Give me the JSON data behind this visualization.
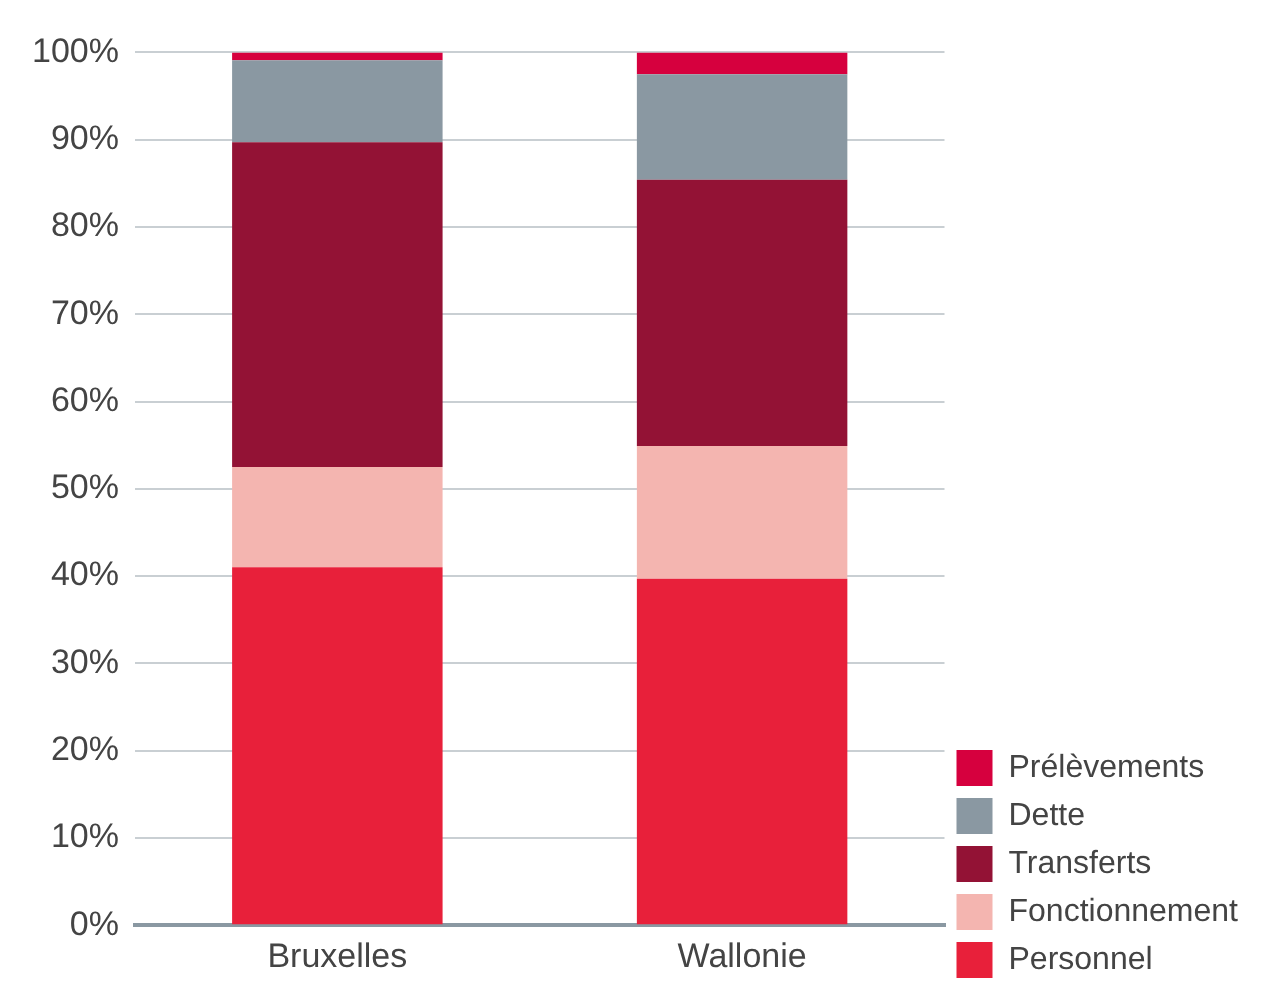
{
  "chart_data": {
    "type": "bar",
    "stacked": true,
    "categories": [
      "Bruxelles",
      "Wallonie"
    ],
    "series": [
      {
        "name": "Personnel",
        "color": "#e8203a",
        "values": [
          41.0,
          39.7
        ]
      },
      {
        "name": "Fonctionnement",
        "color": "#f4b5b0",
        "values": [
          11.5,
          15.2
        ]
      },
      {
        "name": "Transferts",
        "color": "#931235",
        "values": [
          37.2,
          30.5
        ]
      },
      {
        "name": "Dette",
        "color": "#8a98a2",
        "values": [
          9.4,
          12.1
        ]
      },
      {
        "name": "Prélèvements",
        "color": "#d6003e",
        "values": [
          0.9,
          2.5
        ]
      }
    ],
    "ylim": [
      0,
      100
    ],
    "yticks": [
      {
        "value": 0,
        "label": "0%"
      },
      {
        "value": 10,
        "label": "10%"
      },
      {
        "value": 20,
        "label": "20%"
      },
      {
        "value": 30,
        "label": "30%"
      },
      {
        "value": 40,
        "label": "40%"
      },
      {
        "value": 50,
        "label": "50%"
      },
      {
        "value": 60,
        "label": "60%"
      },
      {
        "value": 70,
        "label": "70%"
      },
      {
        "value": 80,
        "label": "80%"
      },
      {
        "value": 90,
        "label": "90%"
      },
      {
        "value": 100,
        "label": "100%"
      }
    ],
    "grid": "y",
    "legend": "right"
  }
}
